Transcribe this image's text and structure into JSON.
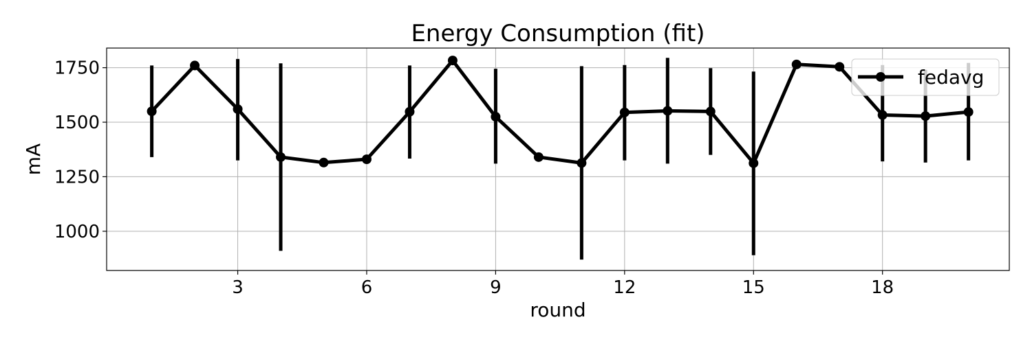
{
  "chart_data": {
    "type": "line",
    "title": "Energy Consumption (fit)",
    "xlabel": "round",
    "ylabel": "mA",
    "xlim": [
      -0.05,
      20.95
    ],
    "ylim": [
      820,
      1840
    ],
    "x_ticks": [
      3,
      6,
      9,
      12,
      15,
      18
    ],
    "y_ticks": [
      1000,
      1250,
      1500,
      1750
    ],
    "grid": true,
    "legend_position": "top-right",
    "series": [
      {
        "name": "fedavg",
        "color": "#000000",
        "marker": "circle",
        "x": [
          1,
          2,
          3,
          4,
          5,
          6,
          7,
          8,
          9,
          10,
          11,
          12,
          13,
          14,
          15,
          16,
          17,
          18,
          19,
          20
        ],
        "y": [
          1550,
          1760,
          1560,
          1340,
          1315,
          1330,
          1548,
          1783,
          1525,
          1340,
          1313,
          1545,
          1552,
          1549,
          1312,
          1765,
          1754,
          1533,
          1528,
          1547
        ],
        "err_low": [
          1340,
          null,
          1325,
          910,
          null,
          null,
          1333,
          null,
          1310,
          null,
          870,
          1325,
          1310,
          1350,
          890,
          null,
          null,
          1320,
          1315,
          1325
        ],
        "err_high": [
          1760,
          null,
          1790,
          1770,
          null,
          null,
          1760,
          null,
          1745,
          null,
          1757,
          1762,
          1795,
          1748,
          1732,
          null,
          null,
          1762,
          1740,
          1772
        ]
      }
    ]
  }
}
